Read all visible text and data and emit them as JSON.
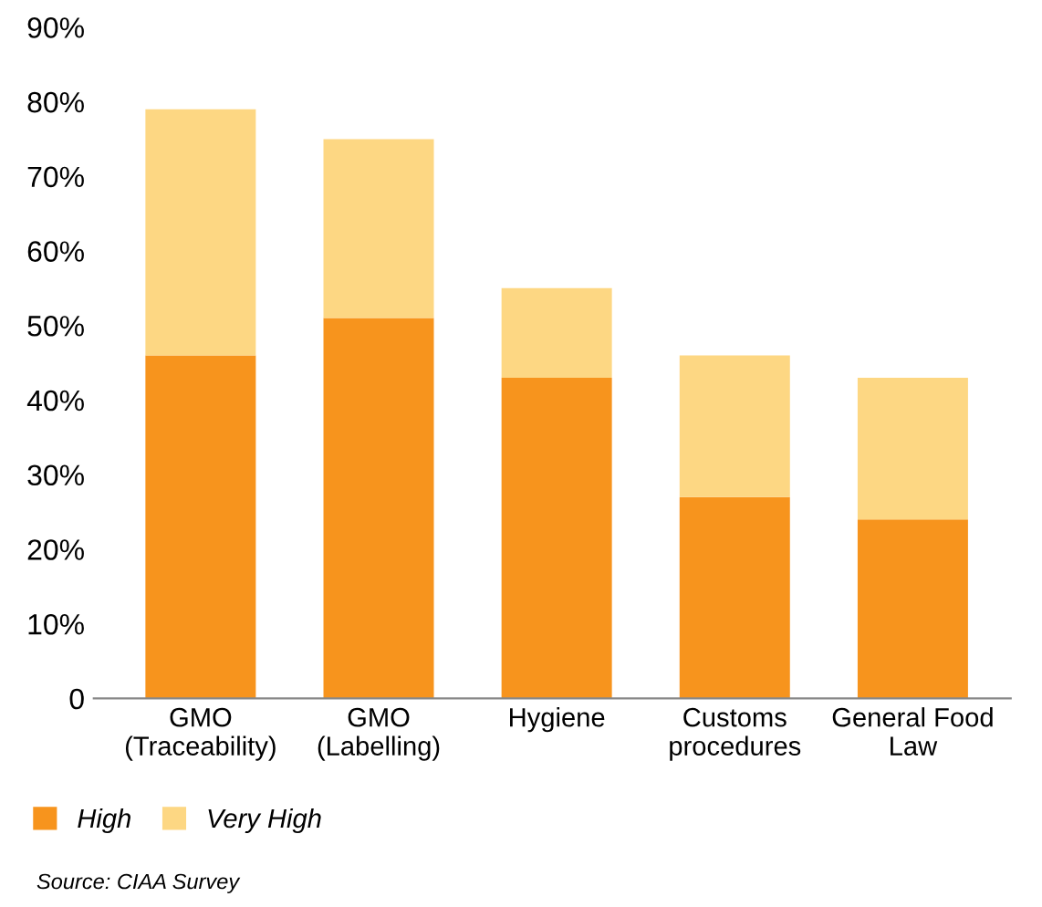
{
  "chart_data": {
    "type": "bar",
    "stacked": true,
    "categories": [
      "GMO\n(Traceability)",
      "GMO\n(Labelling)",
      "Hygiene",
      "Customs\nprocedures",
      "General Food\nLaw"
    ],
    "series": [
      {
        "name": "High",
        "color": "#f7941d",
        "values": [
          46,
          51,
          43,
          27,
          24
        ]
      },
      {
        "name": "Very High",
        "color": "#fdd783",
        "values": [
          33,
          24,
          12,
          19,
          19
        ]
      }
    ],
    "ylim": [
      0,
      90
    ],
    "yticks": [
      0,
      {
        "value": 10,
        "label": "10%"
      },
      {
        "value": 20,
        "label": "20%"
      },
      {
        "value": 30,
        "label": "30%"
      },
      {
        "value": 40,
        "label": "40%"
      },
      {
        "value": 50,
        "label": "50%"
      },
      {
        "value": 60,
        "label": "60%"
      },
      {
        "value": 70,
        "label": "70%"
      },
      {
        "value": 80,
        "label": "80%"
      },
      {
        "value": 90,
        "label": "90%"
      }
    ],
    "legend": "bottom left",
    "annotations": [
      "Source: CIAA Survey"
    ]
  }
}
